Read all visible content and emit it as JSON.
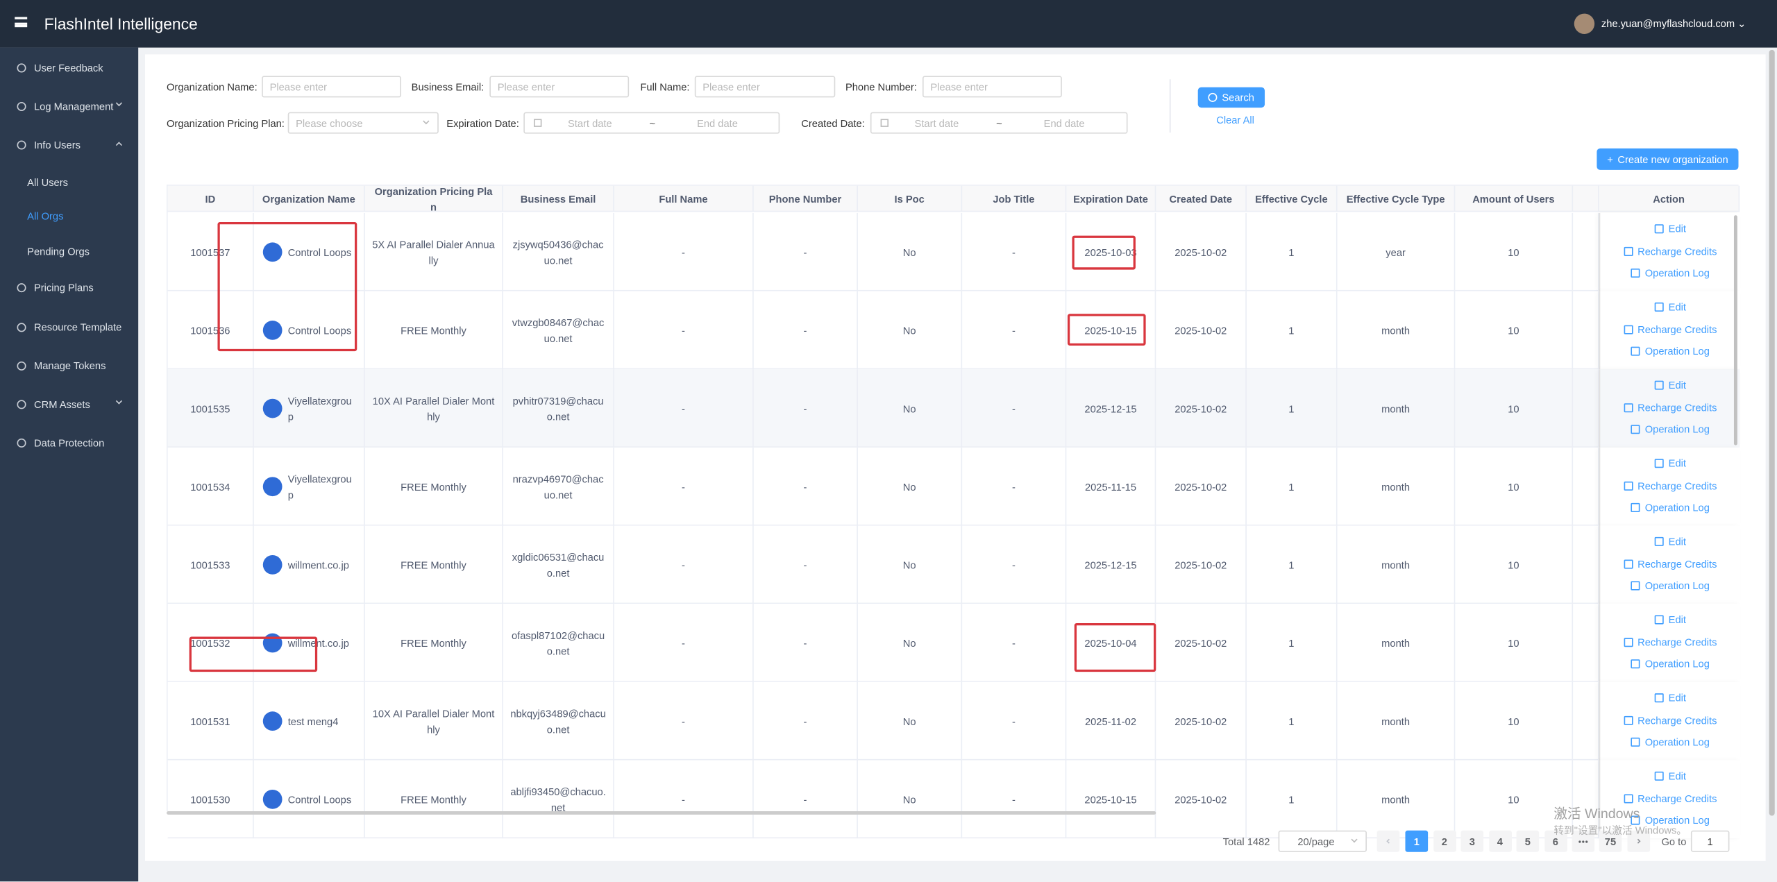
{
  "header": {
    "title": "FlashIntel Intelligence",
    "user": "zhe.yuan@myflashcloud.com"
  },
  "sidebar": [
    {
      "label": "User Feedback"
    },
    {
      "label": "Log Management",
      "expandable": true
    },
    {
      "label": "Info Users",
      "expandable": true,
      "open": true
    },
    {
      "label": "All Users",
      "child": true
    },
    {
      "label": "All Orgs",
      "child": true,
      "active": true
    },
    {
      "label": "Pending Orgs",
      "child": true
    },
    {
      "label": "Pricing Plans"
    },
    {
      "label": "Resource Template"
    },
    {
      "label": "Manage Tokens"
    },
    {
      "label": "CRM Assets",
      "expandable": true
    },
    {
      "label": "Data Protection"
    }
  ],
  "filters": {
    "inputs": [
      {
        "label": "Organization Name:",
        "placeholder": "Please enter"
      },
      {
        "label": "Business Email:",
        "placeholder": "Please enter"
      },
      {
        "label": "Full Name:",
        "placeholder": "Please enter"
      },
      {
        "label": "Phone Number:",
        "placeholder": "Please enter"
      }
    ],
    "plan": {
      "label": "Organization Pricing Plan:",
      "placeholder": "Please choose"
    },
    "dates": [
      {
        "label": "Expiration Date:",
        "start": "Start date",
        "separator": "~",
        "end": "End date"
      },
      {
        "label": "Created Date:",
        "start": "Start date",
        "separator": "~",
        "end": "End date"
      }
    ]
  },
  "buttons": {
    "search": "Search",
    "clear": "Clear All",
    "create": "Create new organization"
  },
  "table": {
    "columns": [
      "ID",
      "Organization Name",
      "Organization Pricing Plan",
      "Business Email",
      "Full Name",
      "Phone Number",
      "Is Poc",
      "Job Title",
      "Expiration Date",
      "Created Date",
      "Effective Cycle",
      "Effective Cycle Type",
      "Amount of Users",
      "Action"
    ],
    "rows": [
      [
        "1001537",
        "Control Loops",
        "5X AI Parallel Dialer Annually",
        "zjsywq50436@chacuo.net",
        "-",
        "-",
        "No",
        "-",
        "2025-10-03",
        "2025-10-02",
        "1",
        "year",
        "10"
      ],
      [
        "1001536",
        "Control Loops",
        "FREE Monthly",
        "vtwzgb08467@chacuo.net",
        "-",
        "-",
        "No",
        "-",
        "2025-10-15",
        "2025-10-02",
        "1",
        "month",
        "10"
      ],
      [
        "1001535",
        "Viyellatexgroup",
        "10X AI Parallel Dialer Monthly",
        "pvhitr07319@chacuo.net",
        "-",
        "-",
        "No",
        "-",
        "2025-12-15",
        "2025-10-02",
        "1",
        "month",
        "10"
      ],
      [
        "1001534",
        "Viyellatexgroup",
        "FREE Monthly",
        "nrazvp46970@chacuo.net",
        "-",
        "-",
        "No",
        "-",
        "2025-11-15",
        "2025-10-02",
        "1",
        "month",
        "10"
      ],
      [
        "1001533",
        "willment.co.jp",
        "FREE Monthly",
        "xgldic06531@chacuo.net",
        "-",
        "-",
        "No",
        "-",
        "2025-12-15",
        "2025-10-02",
        "1",
        "month",
        "10"
      ],
      [
        "1001532",
        "willment.co.jp",
        "FREE Monthly",
        "ofaspl87102@chacuo.net",
        "-",
        "-",
        "No",
        "-",
        "2025-10-04",
        "2025-10-02",
        "1",
        "month",
        "10"
      ],
      [
        "1001531",
        "test meng4",
        "10X AI Parallel Dialer Monthly",
        "nbkqyj63489@chacuo.net",
        "-",
        "-",
        "No",
        "-",
        "2025-11-02",
        "2025-10-02",
        "1",
        "month",
        "10"
      ],
      [
        "1001530",
        "Control Loops",
        "FREE Monthly",
        "abljfi93450@chacuo.net",
        "-",
        "-",
        "No",
        "-",
        "2025-10-15",
        "2025-10-02",
        "1",
        "month",
        "10"
      ]
    ],
    "actions": [
      "Edit",
      "Recharge Credits",
      "Operation Log"
    ]
  },
  "pagination": {
    "total": "Total 1482",
    "page_size": "20/page",
    "pages": [
      1,
      2,
      3,
      4,
      5,
      6
    ],
    "last": 75,
    "current": 1,
    "goto_label": "Go to",
    "goto_value": 1
  },
  "watermark": {
    "line1": "激活 Windows",
    "line2": "转到\"设置\"以激活 Windows。"
  }
}
